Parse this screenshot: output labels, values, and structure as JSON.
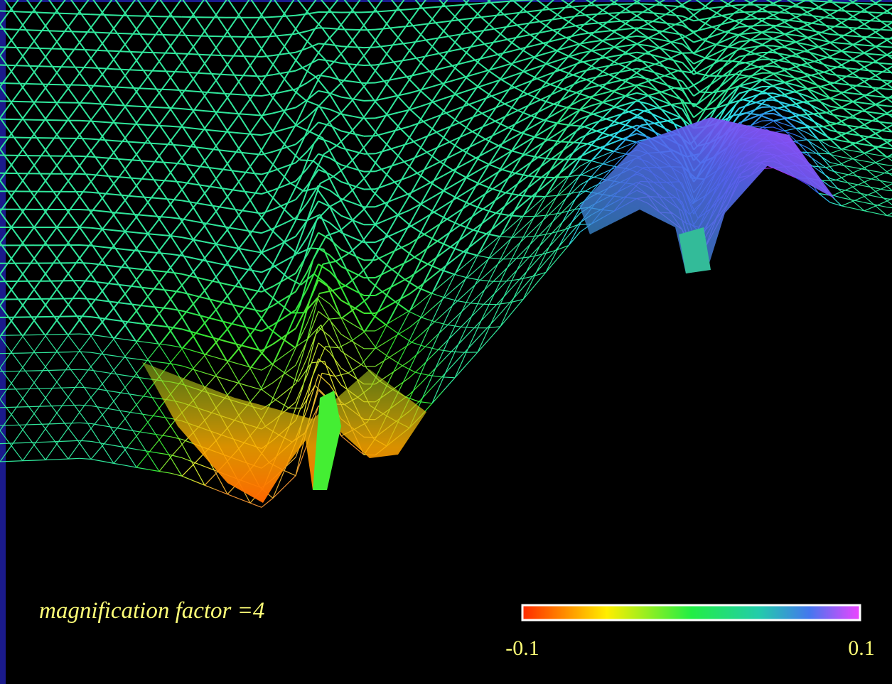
{
  "annotation": "magnification factor =4",
  "colorbar": {
    "min": -0.1,
    "max": 0.1
  }
}
